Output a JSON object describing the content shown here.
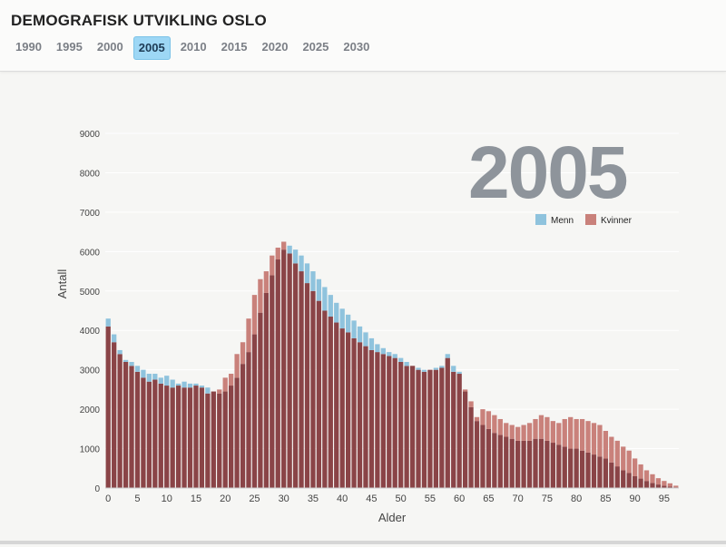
{
  "header": {
    "title": "DEMOGRAFISK UTVIKLING OSLO",
    "years": [
      "1990",
      "1995",
      "2000",
      "2005",
      "2010",
      "2015",
      "2020",
      "2025",
      "2030"
    ],
    "active_year": "2005"
  },
  "big_year": "2005",
  "colors": {
    "menn": "#8fc3dd",
    "kvinner": "#c9817b",
    "overlap": "#8a4447",
    "active_tab": "#9dd7f5"
  },
  "chart_data": {
    "type": "bar",
    "xlabel": "Alder",
    "ylabel": "Antall",
    "ylim": [
      0,
      9000
    ],
    "yticks": [
      0,
      1000,
      2000,
      3000,
      4000,
      5000,
      6000,
      7000,
      8000,
      9000
    ],
    "xticks": [
      0,
      5,
      10,
      15,
      20,
      25,
      30,
      35,
      40,
      45,
      50,
      55,
      60,
      65,
      70,
      75,
      80,
      85,
      90,
      95
    ],
    "x": [
      0,
      1,
      2,
      3,
      4,
      5,
      6,
      7,
      8,
      9,
      10,
      11,
      12,
      13,
      14,
      15,
      16,
      17,
      18,
      19,
      20,
      21,
      22,
      23,
      24,
      25,
      26,
      27,
      28,
      29,
      30,
      31,
      32,
      33,
      34,
      35,
      36,
      37,
      38,
      39,
      40,
      41,
      42,
      43,
      44,
      45,
      46,
      47,
      48,
      49,
      50,
      51,
      52,
      53,
      54,
      55,
      56,
      57,
      58,
      59,
      60,
      61,
      62,
      63,
      64,
      65,
      66,
      67,
      68,
      69,
      70,
      71,
      72,
      73,
      74,
      75,
      76,
      77,
      78,
      79,
      80,
      81,
      82,
      83,
      84,
      85,
      86,
      87,
      88,
      89,
      90,
      91,
      92,
      93,
      94,
      95,
      96,
      97
    ],
    "legend_position": "top-right",
    "series": [
      {
        "name": "Menn",
        "values": [
          4300,
          3900,
          3500,
          3250,
          3200,
          3100,
          3000,
          2900,
          2900,
          2800,
          2850,
          2750,
          2650,
          2700,
          2650,
          2650,
          2600,
          2550,
          2450,
          2400,
          2450,
          2600,
          2800,
          3150,
          3450,
          3900,
          4450,
          4950,
          5400,
          5800,
          6050,
          6150,
          6050,
          5900,
          5700,
          5500,
          5300,
          5100,
          4900,
          4700,
          4550,
          4400,
          4250,
          4100,
          3950,
          3800,
          3650,
          3550,
          3450,
          3400,
          3300,
          3200,
          3100,
          3050,
          3000,
          3000,
          3050,
          3100,
          3400,
          3100,
          2950,
          2450,
          2050,
          1700,
          1600,
          1500,
          1400,
          1350,
          1300,
          1250,
          1200,
          1200,
          1200,
          1250,
          1250,
          1200,
          1150,
          1100,
          1050,
          1000,
          1000,
          950,
          900,
          850,
          800,
          750,
          650,
          550,
          450,
          380,
          300,
          240,
          180,
          130,
          90,
          60,
          40,
          20
        ]
      },
      {
        "name": "Kvinner",
        "values": [
          4100,
          3700,
          3400,
          3200,
          3100,
          2950,
          2800,
          2700,
          2750,
          2650,
          2600,
          2550,
          2600,
          2550,
          2550,
          2600,
          2550,
          2400,
          2450,
          2500,
          2800,
          2900,
          3400,
          3700,
          4300,
          4900,
          5300,
          5500,
          5900,
          6100,
          6250,
          5950,
          5700,
          5500,
          5200,
          5000,
          4750,
          4500,
          4350,
          4200,
          4050,
          3950,
          3800,
          3700,
          3600,
          3500,
          3450,
          3400,
          3350,
          3300,
          3200,
          3100,
          3100,
          3000,
          2950,
          3000,
          3000,
          3050,
          3300,
          2950,
          2900,
          2500,
          2200,
          1800,
          2000,
          1950,
          1850,
          1750,
          1650,
          1600,
          1550,
          1600,
          1650,
          1750,
          1850,
          1800,
          1700,
          1650,
          1750,
          1800,
          1750,
          1750,
          1700,
          1650,
          1600,
          1450,
          1300,
          1200,
          1050,
          950,
          750,
          600,
          450,
          350,
          250,
          180,
          120,
          60
        ]
      }
    ]
  }
}
